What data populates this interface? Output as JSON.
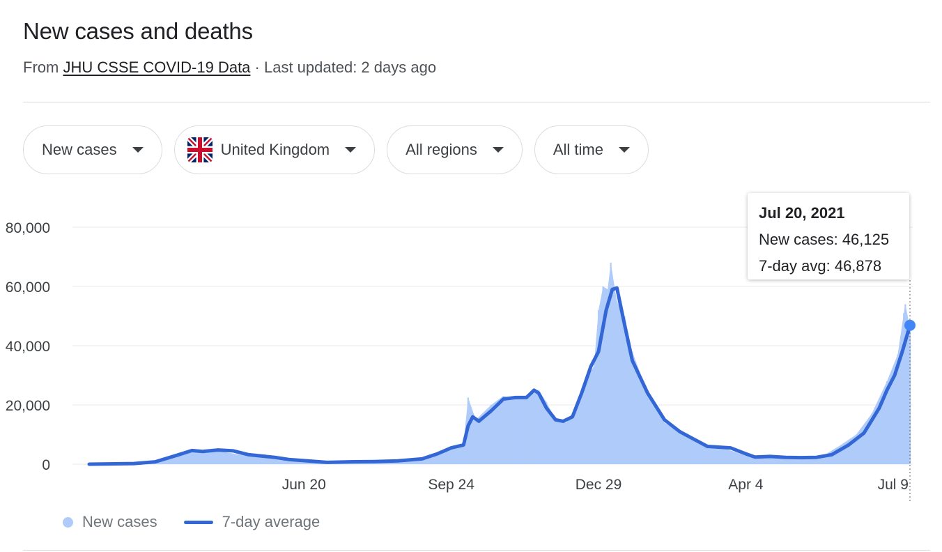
{
  "header": {
    "title": "New cases and deaths",
    "source_prefix": "From ",
    "source_link": "JHU CSSE COVID-19 Data",
    "updated": " · Last updated: 2 days ago"
  },
  "filters": [
    {
      "label": "New cases",
      "icon": "caret-down-icon"
    },
    {
      "label": "United Kingdom",
      "icon": "uk-flag-icon"
    },
    {
      "label": "All regions",
      "icon": "caret-down-icon"
    },
    {
      "label": "All time",
      "icon": "caret-down-icon"
    }
  ],
  "tooltip": {
    "date": "Jul 20, 2021",
    "cases": "New cases: 46,125",
    "avg": "7-day avg: 46,878"
  },
  "legend": {
    "bars": "New cases",
    "line": "7-day average"
  },
  "colors": {
    "bars": "#aecbfa",
    "line": "#3367d6",
    "marker": "#4285f4",
    "grid": "#e8eaed",
    "axis_text": "#3c4043"
  },
  "chart_data": {
    "type": "bar",
    "x_range": [
      "2020-02-01",
      "2021-07-20"
    ],
    "ylim": [
      0,
      80000
    ],
    "y_ticks": [
      0,
      20000,
      40000,
      60000,
      80000
    ],
    "y_tick_labels": [
      "0",
      "20,000",
      "40,000",
      "60,000",
      "80,000"
    ],
    "x_ticks": [
      {
        "date": "2020-06-20",
        "label": "Jun 20"
      },
      {
        "date": "2020-09-24",
        "label": "Sep 24"
      },
      {
        "date": "2020-12-29",
        "label": "Dec 29"
      },
      {
        "date": "2021-04-04",
        "label": "Apr 4"
      },
      {
        "date": "2021-07-09",
        "label": "Jul 9"
      }
    ],
    "series": [
      {
        "name": "New cases",
        "kind": "bar",
        "points": [
          [
            "2020-02-01",
            0
          ],
          [
            "2020-03-01",
            100
          ],
          [
            "2020-03-15",
            1000
          ],
          [
            "2020-03-29",
            3000
          ],
          [
            "2020-04-08",
            4600
          ],
          [
            "2020-04-18",
            4600
          ],
          [
            "2020-04-28",
            4200
          ],
          [
            "2020-05-08",
            3300
          ],
          [
            "2020-05-22",
            2600
          ],
          [
            "2020-06-05",
            1700
          ],
          [
            "2020-06-20",
            1100
          ],
          [
            "2020-07-05",
            700
          ],
          [
            "2020-07-20",
            650
          ],
          [
            "2020-08-05",
            900
          ],
          [
            "2020-08-20",
            1100
          ],
          [
            "2020-09-05",
            2000
          ],
          [
            "2020-09-15",
            4000
          ],
          [
            "2020-09-24",
            6000
          ],
          [
            "2020-10-02",
            7000
          ],
          [
            "2020-10-05",
            22500
          ],
          [
            "2020-10-10",
            15000
          ],
          [
            "2020-10-20",
            20000
          ],
          [
            "2020-10-28",
            23000
          ],
          [
            "2020-11-05",
            22000
          ],
          [
            "2020-11-15",
            23500
          ],
          [
            "2020-11-20",
            25000
          ],
          [
            "2020-11-25",
            21000
          ],
          [
            "2020-11-30",
            16000
          ],
          [
            "2020-12-08",
            14000
          ],
          [
            "2020-12-14",
            18500
          ],
          [
            "2020-12-20",
            28000
          ],
          [
            "2020-12-26",
            33000
          ],
          [
            "2020-12-29",
            52000
          ],
          [
            "2021-01-01",
            60000
          ],
          [
            "2021-01-04",
            59000
          ],
          [
            "2021-01-06",
            68000
          ],
          [
            "2021-01-10",
            55000
          ],
          [
            "2021-01-15",
            50000
          ],
          [
            "2021-01-20",
            38000
          ],
          [
            "2021-01-30",
            24000
          ],
          [
            "2021-02-10",
            14000
          ],
          [
            "2021-02-20",
            11000
          ],
          [
            "2021-03-01",
            8000
          ],
          [
            "2021-03-10",
            6000
          ],
          [
            "2021-03-20",
            5500
          ],
          [
            "2021-04-04",
            3000
          ],
          [
            "2021-04-15",
            2500
          ],
          [
            "2021-04-25",
            2300
          ],
          [
            "2021-05-05",
            2200
          ],
          [
            "2021-05-15",
            2400
          ],
          [
            "2021-05-25",
            3000
          ],
          [
            "2021-06-05",
            6500
          ],
          [
            "2021-06-15",
            10000
          ],
          [
            "2021-06-25",
            17000
          ],
          [
            "2021-07-05",
            28000
          ],
          [
            "2021-07-12",
            37000
          ],
          [
            "2021-07-16",
            51000
          ],
          [
            "2021-07-17",
            54000
          ],
          [
            "2021-07-20",
            46125
          ]
        ]
      },
      {
        "name": "7-day average",
        "kind": "line",
        "points": [
          [
            "2020-02-01",
            0
          ],
          [
            "2020-03-01",
            200
          ],
          [
            "2020-03-15",
            800
          ],
          [
            "2020-03-29",
            3000
          ],
          [
            "2020-04-08",
            4600
          ],
          [
            "2020-04-15",
            4300
          ],
          [
            "2020-04-25",
            4800
          ],
          [
            "2020-05-05",
            4500
          ],
          [
            "2020-05-15",
            3200
          ],
          [
            "2020-06-01",
            2300
          ],
          [
            "2020-06-10",
            1600
          ],
          [
            "2020-06-20",
            1200
          ],
          [
            "2020-07-05",
            600
          ],
          [
            "2020-07-20",
            800
          ],
          [
            "2020-08-05",
            900
          ],
          [
            "2020-08-20",
            1100
          ],
          [
            "2020-09-05",
            1800
          ],
          [
            "2020-09-15",
            3500
          ],
          [
            "2020-09-24",
            5500
          ],
          [
            "2020-10-02",
            6500
          ],
          [
            "2020-10-05",
            13000
          ],
          [
            "2020-10-08",
            16000
          ],
          [
            "2020-10-12",
            14500
          ],
          [
            "2020-10-20",
            18000
          ],
          [
            "2020-10-28",
            22000
          ],
          [
            "2020-11-05",
            22500
          ],
          [
            "2020-11-12",
            22500
          ],
          [
            "2020-11-17",
            25000
          ],
          [
            "2020-11-20",
            24000
          ],
          [
            "2020-11-25",
            19000
          ],
          [
            "2020-12-01",
            15000
          ],
          [
            "2020-12-06",
            14500
          ],
          [
            "2020-12-12",
            16000
          ],
          [
            "2020-12-18",
            24000
          ],
          [
            "2020-12-24",
            33000
          ],
          [
            "2020-12-29",
            38000
          ],
          [
            "2021-01-03",
            52000
          ],
          [
            "2021-01-07",
            59000
          ],
          [
            "2021-01-10",
            59500
          ],
          [
            "2021-01-15",
            47000
          ],
          [
            "2021-01-20",
            35000
          ],
          [
            "2021-01-30",
            24000
          ],
          [
            "2021-02-10",
            15000
          ],
          [
            "2021-02-20",
            11000
          ],
          [
            "2021-03-01",
            8500
          ],
          [
            "2021-03-10",
            6000
          ],
          [
            "2021-03-25",
            5500
          ],
          [
            "2021-04-04",
            3500
          ],
          [
            "2021-04-10",
            2400
          ],
          [
            "2021-04-20",
            2600
          ],
          [
            "2021-04-30",
            2300
          ],
          [
            "2021-05-10",
            2200
          ],
          [
            "2021-05-20",
            2300
          ],
          [
            "2021-05-30",
            3200
          ],
          [
            "2021-06-10",
            6500
          ],
          [
            "2021-06-20",
            10500
          ],
          [
            "2021-06-30",
            19000
          ],
          [
            "2021-07-05",
            25000
          ],
          [
            "2021-07-10",
            30000
          ],
          [
            "2021-07-15",
            38000
          ],
          [
            "2021-07-20",
            46878
          ]
        ]
      }
    ]
  }
}
